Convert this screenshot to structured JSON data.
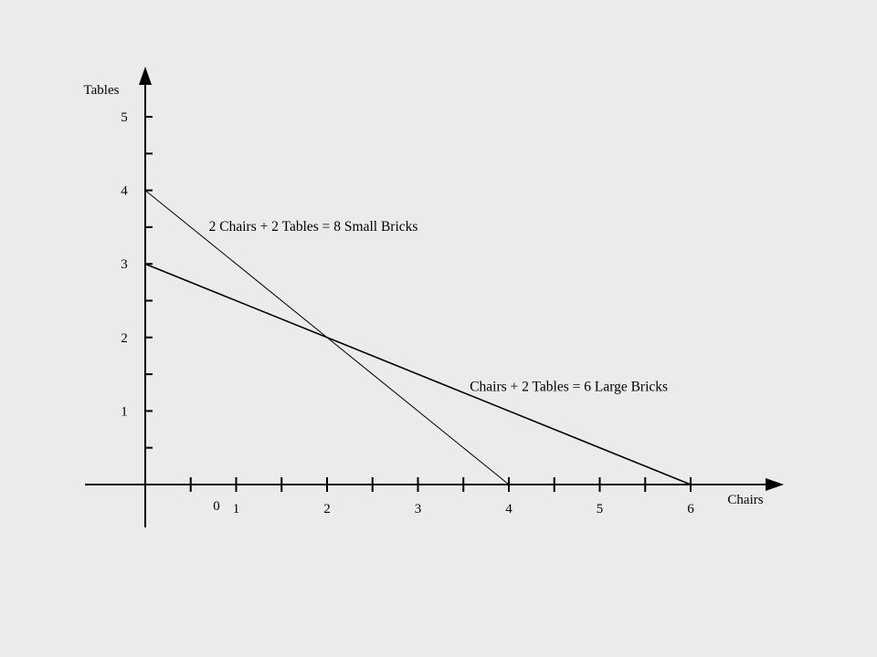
{
  "chart_data": {
    "type": "line",
    "xlabel": "Chairs",
    "ylabel": "Tables",
    "xlim": [
      0,
      7
    ],
    "ylim": [
      0,
      5.5
    ],
    "x_ticks": [
      0.5,
      1,
      1.5,
      2,
      2.5,
      3,
      3.5,
      4,
      4.5,
      5,
      5.5,
      6
    ],
    "x_tick_labels": [
      {
        "value": 1,
        "label": "1"
      },
      {
        "value": 2,
        "label": "2"
      },
      {
        "value": 3,
        "label": "3"
      },
      {
        "value": 4,
        "label": "4"
      },
      {
        "value": 5,
        "label": "5"
      },
      {
        "value": 6,
        "label": "6"
      }
    ],
    "y_ticks": [
      0.5,
      1,
      1.5,
      2,
      2.5,
      3,
      3.5,
      4,
      4.5,
      5
    ],
    "y_tick_labels": [
      {
        "value": 1,
        "label": "1"
      },
      {
        "value": 2,
        "label": "2"
      },
      {
        "value": 3,
        "label": "3"
      },
      {
        "value": 4,
        "label": "4"
      },
      {
        "value": 5,
        "label": "5"
      }
    ],
    "origin_label": "0",
    "grid": false,
    "series": [
      {
        "x": [
          0,
          4
        ],
        "y": [
          4,
          0
        ],
        "stroke_width": 1
      },
      {
        "x": [
          0,
          6
        ],
        "y": [
          3,
          0
        ],
        "stroke_width": 1.6
      }
    ],
    "annotations": [
      {
        "text": "2 Chairs + 2 Tables = 8 Small Bricks",
        "x": 0.7,
        "y": 3.45
      },
      {
        "text": "Chairs + 2 Tables = 6 Large Bricks",
        "x": 3.57,
        "y": 1.27
      }
    ]
  }
}
